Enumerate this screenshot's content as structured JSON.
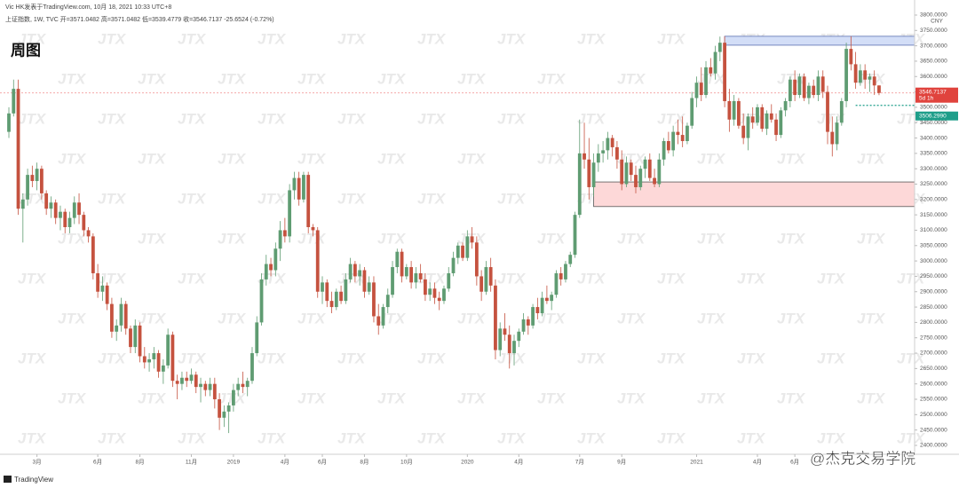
{
  "chart_data": {
    "type": "candlestick",
    "header": "Vic HK发表于TradingView.com, 10月 18, 2021 10:33 UTC+8",
    "symbol_line": "上证指数, 1W, TVC  开=3571.0482  高=3571.0482  低=3539.4779  收=3546.7137  -25.6524 (-0.72%)",
    "title": "周图",
    "currency": "CNY",
    "watermark": "JTX",
    "footer_logo": "TradingView",
    "credit": "@杰克交易学院",
    "up_color": "#5f9c72",
    "down_color": "#c5523f",
    "ylim": [
      2371,
      3849
    ],
    "xlim": [
      -1.9,
      193.6
    ],
    "yticks": [
      {
        "value": 2400,
        "label": "2400.0000"
      },
      {
        "value": 2450,
        "label": "2450.0000"
      },
      {
        "value": 2500,
        "label": "2500.0000"
      },
      {
        "value": 2550,
        "label": "2550.0000"
      },
      {
        "value": 2600,
        "label": "2600.0000"
      },
      {
        "value": 2650,
        "label": "2650.0000"
      },
      {
        "value": 2700,
        "label": "2700.0000"
      },
      {
        "value": 2750,
        "label": "2750.0000"
      },
      {
        "value": 2800,
        "label": "2800.0000"
      },
      {
        "value": 2850,
        "label": "2850.0000"
      },
      {
        "value": 2900,
        "label": "2900.0000"
      },
      {
        "value": 2950,
        "label": "2950.0000"
      },
      {
        "value": 3000,
        "label": "3000.0000"
      },
      {
        "value": 3050,
        "label": "3050.0000"
      },
      {
        "value": 3100,
        "label": "3100.0000"
      },
      {
        "value": 3150,
        "label": "3150.0000"
      },
      {
        "value": 3200,
        "label": "3200.0000"
      },
      {
        "value": 3250,
        "label": "3250.0000"
      },
      {
        "value": 3300,
        "label": "3300.0000"
      },
      {
        "value": 3350,
        "label": "3350.0000"
      },
      {
        "value": 3400,
        "label": "3400.0000"
      },
      {
        "value": 3450,
        "label": "3450.0000"
      },
      {
        "value": 3500,
        "label": "3500.0000"
      },
      {
        "value": 3550,
        "label": "3550.0000"
      },
      {
        "value": 3600,
        "label": "3600.0000"
      },
      {
        "value": 3650,
        "label": "3650.0000"
      },
      {
        "value": 3700,
        "label": "3700.0000"
      },
      {
        "value": 3750,
        "label": "3750.0000"
      },
      {
        "value": 3800,
        "label": "3800.0000"
      }
    ],
    "xticks": [
      {
        "value": 6,
        "label": "3月"
      },
      {
        "value": 19,
        "label": "6月"
      },
      {
        "value": 28,
        "label": "8月"
      },
      {
        "value": 39,
        "label": "11月"
      },
      {
        "value": 48,
        "label": "2019"
      },
      {
        "value": 59,
        "label": "4月"
      },
      {
        "value": 67,
        "label": "6月"
      },
      {
        "value": 76,
        "label": "8月"
      },
      {
        "value": 85,
        "label": "10月"
      },
      {
        "value": 98,
        "label": "2020"
      },
      {
        "value": 109,
        "label": "4月"
      },
      {
        "value": 122,
        "label": "7月"
      },
      {
        "value": 131,
        "label": "9月"
      },
      {
        "value": 147,
        "label": "2021"
      },
      {
        "value": 160,
        "label": "4月"
      },
      {
        "value": 168,
        "label": "6月"
      }
    ],
    "last_price": 3546.7137,
    "countdown": "5d 1h",
    "level": {
      "value": 3506.299,
      "label": "3506.2990",
      "start": 181,
      "color": "#1f9e8a"
    },
    "zones": [
      {
        "start": 153,
        "low": 3702,
        "high": 3731,
        "color": "#d3def7",
        "border": "#5a6fb0"
      },
      {
        "start": 125,
        "low": 3177,
        "high": 3257,
        "color": "#fdd8d8",
        "border": "#555555"
      }
    ],
    "ohlc": [
      [
        3420,
        3500,
        3400,
        3480
      ],
      [
        3480,
        3590,
        3470,
        3560
      ],
      [
        3560,
        3590,
        3150,
        3170
      ],
      [
        3170,
        3220,
        3060,
        3200
      ],
      [
        3200,
        3300,
        3180,
        3280
      ],
      [
        3280,
        3310,
        3240,
        3260
      ],
      [
        3260,
        3320,
        3230,
        3300
      ],
      [
        3300,
        3310,
        3200,
        3220
      ],
      [
        3220,
        3230,
        3150,
        3170
      ],
      [
        3170,
        3210,
        3140,
        3190
      ],
      [
        3190,
        3200,
        3120,
        3140
      ],
      [
        3140,
        3180,
        3100,
        3160
      ],
      [
        3160,
        3170,
        3090,
        3110
      ],
      [
        3110,
        3160,
        3090,
        3140
      ],
      [
        3140,
        3210,
        3120,
        3190
      ],
      [
        3190,
        3220,
        3120,
        3150
      ],
      [
        3150,
        3160,
        3080,
        3100
      ],
      [
        3100,
        3110,
        3060,
        3080
      ],
      [
        3080,
        3090,
        2940,
        2960
      ],
      [
        2960,
        2990,
        2880,
        2900
      ],
      [
        2900,
        2950,
        2870,
        2920
      ],
      [
        2920,
        2930,
        2840,
        2860
      ],
      [
        2860,
        2880,
        2750,
        2770
      ],
      [
        2770,
        2810,
        2740,
        2790
      ],
      [
        2790,
        2880,
        2770,
        2860
      ],
      [
        2860,
        2870,
        2760,
        2780
      ],
      [
        2780,
        2790,
        2700,
        2720
      ],
      [
        2720,
        2810,
        2700,
        2790
      ],
      [
        2790,
        2800,
        2670,
        2690
      ],
      [
        2690,
        2720,
        2650,
        2670
      ],
      [
        2670,
        2700,
        2640,
        2680
      ],
      [
        2680,
        2720,
        2650,
        2700
      ],
      [
        2700,
        2710,
        2620,
        2640
      ],
      [
        2640,
        2680,
        2600,
        2660
      ],
      [
        2660,
        2780,
        2650,
        2760
      ],
      [
        2760,
        2770,
        2590,
        2610
      ],
      [
        2610,
        2630,
        2550,
        2600
      ],
      [
        2600,
        2640,
        2580,
        2620
      ],
      [
        2620,
        2640,
        2590,
        2610
      ],
      [
        2610,
        2650,
        2600,
        2630
      ],
      [
        2630,
        2640,
        2570,
        2590
      ],
      [
        2590,
        2620,
        2540,
        2600
      ],
      [
        2600,
        2610,
        2560,
        2580
      ],
      [
        2580,
        2620,
        2560,
        2600
      ],
      [
        2600,
        2620,
        2520,
        2550
      ],
      [
        2550,
        2570,
        2450,
        2490
      ],
      [
        2490,
        2530,
        2460,
        2510
      ],
      [
        2510,
        2540,
        2440,
        2530
      ],
      [
        2530,
        2600,
        2510,
        2580
      ],
      [
        2580,
        2620,
        2560,
        2600
      ],
      [
        2600,
        2640,
        2570,
        2590
      ],
      [
        2590,
        2620,
        2560,
        2610
      ],
      [
        2610,
        2720,
        2600,
        2700
      ],
      [
        2700,
        2820,
        2690,
        2800
      ],
      [
        2800,
        2960,
        2790,
        2940
      ],
      [
        2940,
        3020,
        2920,
        2990
      ],
      [
        2990,
        3010,
        2950,
        2970
      ],
      [
        2970,
        3060,
        2950,
        3040
      ],
      [
        3040,
        3130,
        3000,
        3100
      ],
      [
        3100,
        3140,
        3060,
        3080
      ],
      [
        3080,
        3250,
        3060,
        3230
      ],
      [
        3230,
        3290,
        3200,
        3270
      ],
      [
        3270,
        3290,
        3180,
        3200
      ],
      [
        3200,
        3290,
        3190,
        3280
      ],
      [
        3280,
        3290,
        3090,
        3110
      ],
      [
        3110,
        3120,
        3080,
        3100
      ],
      [
        3100,
        3110,
        2880,
        2900
      ],
      [
        2900,
        2950,
        2860,
        2930
      ],
      [
        2930,
        2940,
        2850,
        2870
      ],
      [
        2870,
        2900,
        2830,
        2850
      ],
      [
        2850,
        2910,
        2840,
        2900
      ],
      [
        2900,
        2920,
        2860,
        2870
      ],
      [
        2870,
        2960,
        2860,
        2940
      ],
      [
        2940,
        3010,
        2930,
        2990
      ],
      [
        2990,
        3000,
        2930,
        2950
      ],
      [
        2950,
        2990,
        2920,
        2970
      ],
      [
        2970,
        2980,
        2880,
        2900
      ],
      [
        2900,
        2950,
        2890,
        2930
      ],
      [
        2930,
        2950,
        2800,
        2820
      ],
      [
        2820,
        2860,
        2760,
        2790
      ],
      [
        2790,
        2860,
        2780,
        2850
      ],
      [
        2850,
        2910,
        2830,
        2890
      ],
      [
        2890,
        3000,
        2880,
        2980
      ],
      [
        2980,
        3040,
        2960,
        3030
      ],
      [
        3030,
        3040,
        2930,
        2950
      ],
      [
        2950,
        2990,
        2940,
        2980
      ],
      [
        2980,
        3000,
        2910,
        2930
      ],
      [
        2930,
        2980,
        2910,
        2960
      ],
      [
        2960,
        2990,
        2930,
        2940
      ],
      [
        2940,
        2960,
        2870,
        2890
      ],
      [
        2890,
        2930,
        2870,
        2910
      ],
      [
        2910,
        2930,
        2860,
        2880
      ],
      [
        2880,
        2900,
        2840,
        2870
      ],
      [
        2870,
        2920,
        2860,
        2910
      ],
      [
        2910,
        2980,
        2900,
        2960
      ],
      [
        2960,
        3030,
        2950,
        3010
      ],
      [
        3010,
        3060,
        2990,
        3050
      ],
      [
        3050,
        3060,
        3000,
        3010
      ],
      [
        3010,
        3100,
        3000,
        3080
      ],
      [
        3080,
        3110,
        3040,
        3060
      ],
      [
        3060,
        3080,
        2920,
        2950
      ],
      [
        2950,
        2970,
        2870,
        2900
      ],
      [
        2900,
        3000,
        2890,
        2980
      ],
      [
        2980,
        3010,
        2900,
        2920
      ],
      [
        2920,
        2940,
        2680,
        2710
      ],
      [
        2710,
        2800,
        2690,
        2780
      ],
      [
        2780,
        2830,
        2740,
        2760
      ],
      [
        2760,
        2790,
        2650,
        2700
      ],
      [
        2700,
        2760,
        2660,
        2740
      ],
      [
        2740,
        2780,
        2720,
        2770
      ],
      [
        2770,
        2830,
        2760,
        2810
      ],
      [
        2810,
        2820,
        2760,
        2790
      ],
      [
        2790,
        2860,
        2780,
        2850
      ],
      [
        2850,
        2880,
        2810,
        2830
      ],
      [
        2830,
        2900,
        2820,
        2880
      ],
      [
        2880,
        2920,
        2860,
        2870
      ],
      [
        2870,
        2900,
        2840,
        2890
      ],
      [
        2890,
        2970,
        2880,
        2960
      ],
      [
        2960,
        2980,
        2920,
        2940
      ],
      [
        2940,
        3000,
        2930,
        2990
      ],
      [
        2990,
        3030,
        2980,
        3020
      ],
      [
        3020,
        3160,
        3010,
        3150
      ],
      [
        3150,
        3460,
        3140,
        3350
      ],
      [
        3350,
        3450,
        3300,
        3330
      ],
      [
        3330,
        3400,
        3200,
        3240
      ],
      [
        3240,
        3350,
        3210,
        3320
      ],
      [
        3320,
        3380,
        3290,
        3350
      ],
      [
        3350,
        3390,
        3320,
        3360
      ],
      [
        3360,
        3420,
        3330,
        3400
      ],
      [
        3400,
        3410,
        3340,
        3370
      ],
      [
        3370,
        3390,
        3300,
        3330
      ],
      [
        3330,
        3360,
        3230,
        3250
      ],
      [
        3250,
        3340,
        3240,
        3320
      ],
      [
        3320,
        3330,
        3260,
        3280
      ],
      [
        3280,
        3310,
        3220,
        3240
      ],
      [
        3240,
        3310,
        3230,
        3300
      ],
      [
        3300,
        3340,
        3270,
        3330
      ],
      [
        3330,
        3350,
        3260,
        3270
      ],
      [
        3270,
        3300,
        3240,
        3250
      ],
      [
        3250,
        3350,
        3240,
        3330
      ],
      [
        3330,
        3400,
        3310,
        3390
      ],
      [
        3390,
        3420,
        3350,
        3360
      ],
      [
        3360,
        3440,
        3340,
        3420
      ],
      [
        3420,
        3460,
        3380,
        3410
      ],
      [
        3410,
        3470,
        3370,
        3390
      ],
      [
        3390,
        3450,
        3380,
        3440
      ],
      [
        3440,
        3550,
        3430,
        3530
      ],
      [
        3530,
        3600,
        3500,
        3580
      ],
      [
        3580,
        3630,
        3520,
        3540
      ],
      [
        3540,
        3650,
        3530,
        3630
      ],
      [
        3630,
        3660,
        3600,
        3610
      ],
      [
        3610,
        3700,
        3590,
        3680
      ],
      [
        3680,
        3730,
        3650,
        3710
      ],
      [
        3710,
        3731,
        3500,
        3520
      ],
      [
        3520,
        3560,
        3420,
        3460
      ],
      [
        3460,
        3540,
        3440,
        3520
      ],
      [
        3520,
        3530,
        3430,
        3440
      ],
      [
        3440,
        3480,
        3380,
        3400
      ],
      [
        3400,
        3480,
        3360,
        3470
      ],
      [
        3470,
        3500,
        3430,
        3450
      ],
      [
        3450,
        3510,
        3440,
        3500
      ],
      [
        3500,
        3510,
        3420,
        3430
      ],
      [
        3430,
        3490,
        3410,
        3480
      ],
      [
        3480,
        3510,
        3450,
        3460
      ],
      [
        3460,
        3480,
        3390,
        3410
      ],
      [
        3410,
        3500,
        3400,
        3490
      ],
      [
        3490,
        3530,
        3470,
        3520
      ],
      [
        3520,
        3600,
        3500,
        3590
      ],
      [
        3590,
        3620,
        3520,
        3540
      ],
      [
        3540,
        3610,
        3530,
        3600
      ],
      [
        3600,
        3610,
        3520,
        3530
      ],
      [
        3530,
        3580,
        3510,
        3570
      ],
      [
        3570,
        3590,
        3530,
        3540
      ],
      [
        3540,
        3620,
        3520,
        3600
      ],
      [
        3600,
        3620,
        3530,
        3550
      ],
      [
        3550,
        3570,
        3380,
        3420
      ],
      [
        3420,
        3470,
        3340,
        3380
      ],
      [
        3380,
        3470,
        3360,
        3450
      ],
      [
        3450,
        3530,
        3440,
        3520
      ],
      [
        3520,
        3710,
        3500,
        3690
      ],
      [
        3690,
        3731,
        3620,
        3640
      ],
      [
        3640,
        3680,
        3560,
        3580
      ],
      [
        3580,
        3640,
        3570,
        3620
      ],
      [
        3620,
        3640,
        3560,
        3590
      ],
      [
        3590,
        3610,
        3550,
        3600
      ],
      [
        3600,
        3620,
        3540,
        3571
      ],
      [
        3571.0482,
        3571.0482,
        3539.4779,
        3546.7137
      ]
    ]
  }
}
